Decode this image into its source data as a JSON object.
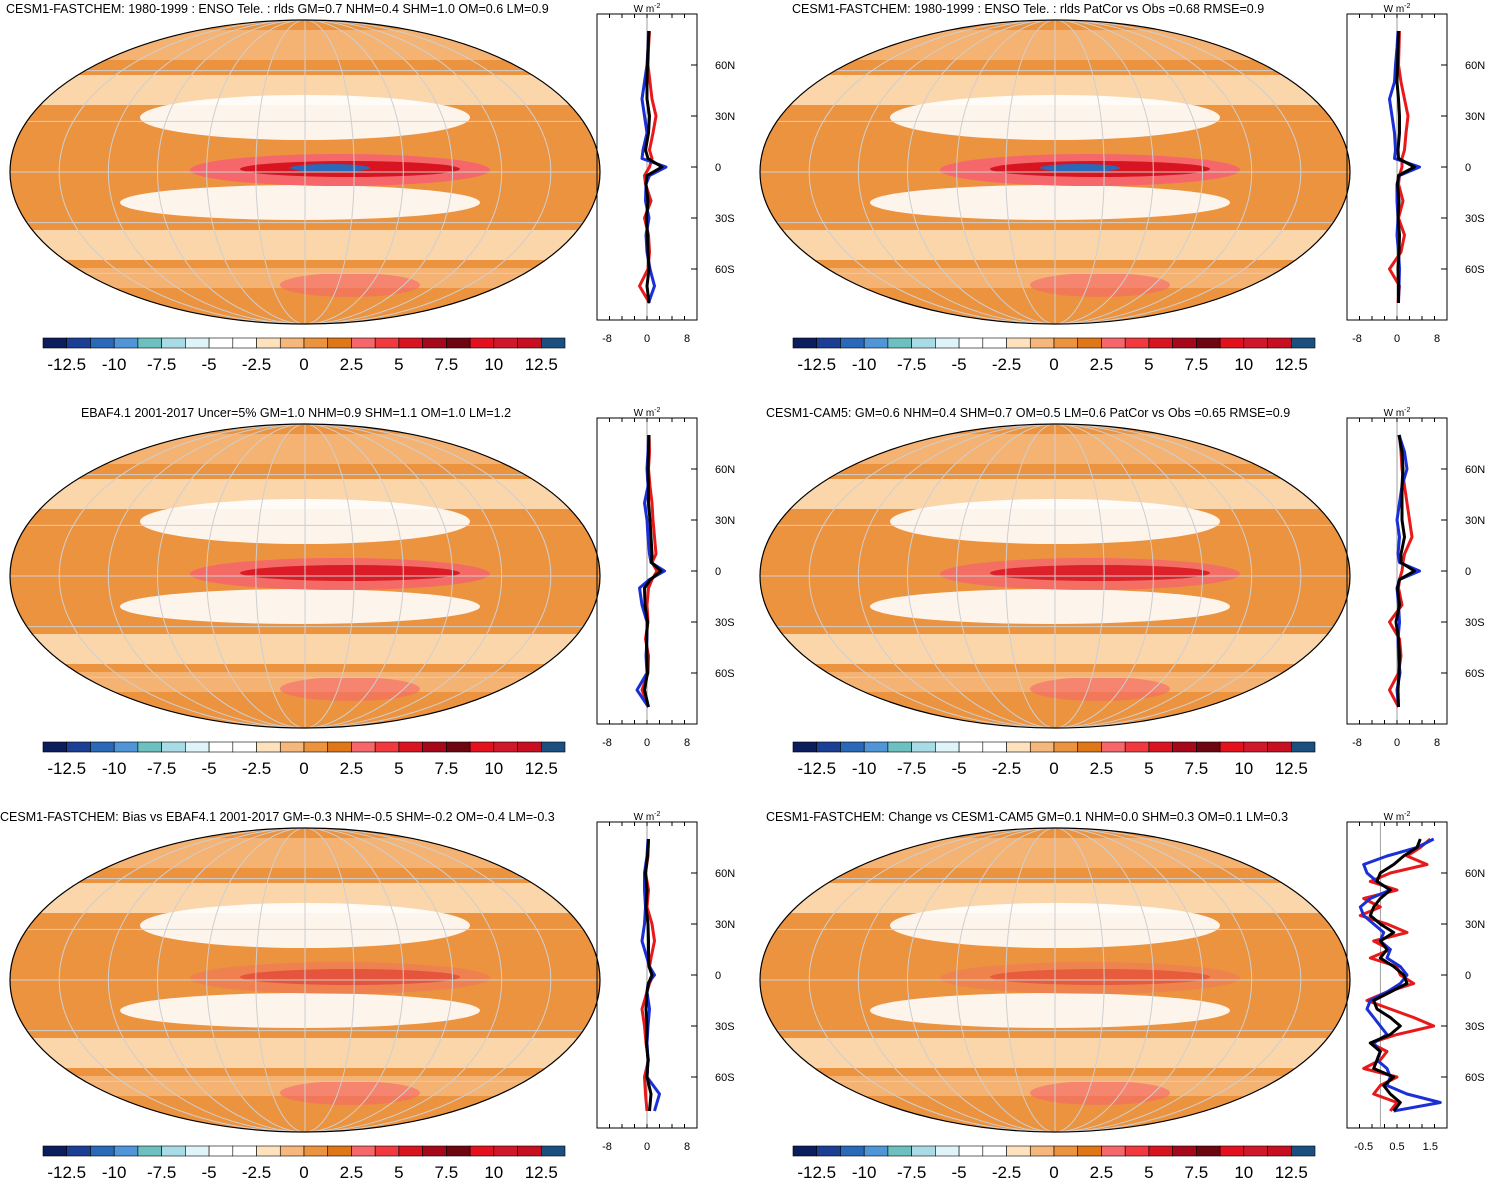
{
  "colorbar": {
    "colors": [
      "#0b1d5c",
      "#1b3f95",
      "#2a68b8",
      "#4f95d8",
      "#6cc0c0",
      "#a8dbe6",
      "#dff4f8",
      "#ffffff",
      "#ffffff",
      "#fde2bd",
      "#f6b77c",
      "#ec9340",
      "#df7618",
      "#f5676a",
      "#f03a40",
      "#d81420",
      "#a5081b",
      "#6e0612",
      "#e3101e",
      "#d0182a",
      "#c61022",
      "#1a4f80"
    ],
    "labels": [
      "-12.5",
      "-10",
      "-7.5",
      "-5",
      "-2.5",
      "0",
      "2.5",
      "5",
      "7.5",
      "10",
      "12.5"
    ]
  },
  "profile_lat_labels": [
    "60N",
    "30N",
    "0",
    "30S",
    "60S"
  ],
  "profile_unit": "W m",
  "profile_unit_sup": "-2",
  "panels": [
    {
      "id": "p1",
      "title": "CESM1-FASTCHEM: 1980-1999 : ENSO Tele. : rlds GM=0.7 NHM=0.4 SHM=1.0 OM=0.6 LM=0.9",
      "x_ticks": [
        "-8",
        "0",
        "8"
      ],
      "profile": {
        "xlim": [
          -10,
          10
        ],
        "lat": [
          80,
          70,
          60,
          50,
          40,
          30,
          20,
          10,
          5,
          0,
          -5,
          -10,
          -20,
          -30,
          -40,
          -50,
          -60,
          -70,
          -80
        ],
        "red": [
          0.5,
          0.3,
          0.2,
          0.6,
          1.0,
          1.8,
          1.2,
          0.5,
          1.0,
          0.5,
          -0.5,
          -0.3,
          0.8,
          -0.5,
          0.3,
          0.5,
          0.2,
          -1.5,
          0.5
        ],
        "blue": [
          0.3,
          0.2,
          0.0,
          -0.5,
          -1.0,
          -0.5,
          0.0,
          -0.8,
          -1.0,
          3.8,
          0.5,
          -0.2,
          -0.3,
          0.4,
          -0.2,
          0.0,
          0.6,
          1.5,
          0.3
        ],
        "black": [
          0.4,
          0.2,
          0.1,
          0.0,
          0.0,
          0.5,
          0.3,
          -0.3,
          0.2,
          3.0,
          0.0,
          -0.2,
          0.2,
          -0.1,
          0.1,
          0.2,
          0.4,
          0.0,
          0.4
        ]
      }
    },
    {
      "id": "p2",
      "title": "CESM1-FASTCHEM: 1980-1999 : ENSO Tele. : rlds PatCor vs Obs =0.68 RMSE=0.9",
      "x_ticks": [
        "-8",
        "0",
        "8"
      ],
      "profile": {
        "xlim": [
          -10,
          10
        ],
        "lat": [
          80,
          70,
          60,
          50,
          40,
          30,
          20,
          10,
          5,
          0,
          -5,
          -10,
          -20,
          -30,
          -40,
          -50,
          -60,
          -70,
          -80
        ],
        "red": [
          0.5,
          0.4,
          0.3,
          0.8,
          1.5,
          2.2,
          1.8,
          1.5,
          1.0,
          1.0,
          0.5,
          0.3,
          1.2,
          0.3,
          1.5,
          0.8,
          -1.5,
          0.5,
          0.2
        ],
        "blue": [
          0.2,
          0.0,
          -0.3,
          -0.5,
          -1.5,
          -1.0,
          -0.5,
          -0.3,
          -0.5,
          4.5,
          0.5,
          0.0,
          0.0,
          0.2,
          0.0,
          0.3,
          0.5,
          0.4,
          0.3
        ],
        "black": [
          0.3,
          0.2,
          0.1,
          0.0,
          0.3,
          0.5,
          0.5,
          0.2,
          0.3,
          3.5,
          0.3,
          0.1,
          0.4,
          0.2,
          0.5,
          0.4,
          0.2,
          0.3,
          0.3
        ]
      }
    },
    {
      "id": "p3",
      "title": "EBAF4.1 2001-2017 Uncer=5% GM=1.0 NHM=0.9 SHM=1.1 OM=1.0 LM=1.2",
      "x_ticks": [
        "-8",
        "0",
        "8"
      ],
      "profile": {
        "xlim": [
          -10,
          10
        ],
        "lat": [
          80,
          70,
          60,
          50,
          40,
          30,
          20,
          10,
          5,
          0,
          -5,
          -10,
          -20,
          -30,
          -40,
          -50,
          -60,
          -70,
          -80
        ],
        "red": [
          0.4,
          0.5,
          0.3,
          0.6,
          1.0,
          1.2,
          1.5,
          1.8,
          1.0,
          2.0,
          1.0,
          0.3,
          0.0,
          0.2,
          -0.3,
          0.3,
          0.2,
          -1.0,
          0.3
        ],
        "blue": [
          0.3,
          0.2,
          0.0,
          0.2,
          -0.5,
          0.0,
          0.2,
          0.5,
          0.8,
          3.5,
          0.5,
          -1.5,
          -1.0,
          0.0,
          0.0,
          -0.2,
          0.0,
          -2.0,
          0.3
        ],
        "black": [
          0.4,
          0.3,
          0.2,
          0.3,
          0.3,
          0.6,
          0.8,
          1.0,
          0.9,
          2.8,
          0.7,
          -0.5,
          -0.4,
          0.1,
          -0.1,
          0.0,
          0.1,
          -0.5,
          0.3
        ]
      }
    },
    {
      "id": "p4",
      "title": "CESM1-CAM5: GM=0.6 NHM=0.4 SHM=0.7 OM=0.5 LM=0.6 PatCor vs Obs =0.65 RMSE=0.9",
      "x_ticks": [
        "-8",
        "0",
        "8"
      ],
      "profile": {
        "xlim": [
          -10,
          10
        ],
        "lat": [
          80,
          70,
          60,
          50,
          40,
          30,
          20,
          10,
          5,
          0,
          -5,
          -10,
          -20,
          -30,
          -40,
          -50,
          -60,
          -70,
          -80
        ],
        "red": [
          0.5,
          0.8,
          1.0,
          1.5,
          2.0,
          2.5,
          3.0,
          1.5,
          1.2,
          1.0,
          0.5,
          0.3,
          1.0,
          -1.5,
          0.5,
          0.8,
          0.3,
          -1.5,
          0.3
        ],
        "blue": [
          0.4,
          1.5,
          2.0,
          1.0,
          0.5,
          0.0,
          0.5,
          0.2,
          0.5,
          4.5,
          0.5,
          0.0,
          0.3,
          0.5,
          0.2,
          0.3,
          0.6,
          0.0,
          0.3
        ],
        "black": [
          0.4,
          1.0,
          1.2,
          1.0,
          1.0,
          1.0,
          1.5,
          0.8,
          0.8,
          3.5,
          0.5,
          0.1,
          0.5,
          -0.2,
          0.3,
          0.5,
          0.4,
          0.2,
          0.3
        ]
      }
    },
    {
      "id": "p5",
      "title": "CESM1-FASTCHEM: Bias vs EBAF4.1 2001-2017 GM=-0.3 NHM=-0.5 SHM=-0.2 OM=-0.4 LM=-0.3",
      "x_ticks": [
        "-8",
        "0",
        "8"
      ],
      "profile": {
        "xlim": [
          -10,
          10
        ],
        "lat": [
          80,
          70,
          60,
          50,
          40,
          30,
          20,
          10,
          5,
          0,
          -5,
          -10,
          -20,
          -30,
          -40,
          -50,
          -60,
          -70,
          -80
        ],
        "red": [
          0.3,
          0.2,
          -0.3,
          0.3,
          0.0,
          1.0,
          1.5,
          0.8,
          0.5,
          1.2,
          0.5,
          0.0,
          -1.0,
          -0.5,
          -0.2,
          0.3,
          -0.5,
          -0.3,
          0.0
        ],
        "blue": [
          0.2,
          0.0,
          -0.5,
          -0.5,
          -0.3,
          -0.5,
          -1.0,
          0.0,
          0.5,
          1.5,
          0.2,
          0.0,
          0.5,
          0.2,
          0.0,
          0.2,
          0.0,
          2.5,
          1.5
        ],
        "black": [
          0.3,
          0.1,
          -0.3,
          0.0,
          -0.2,
          0.2,
          0.3,
          0.3,
          0.4,
          1.0,
          0.3,
          0.0,
          -0.2,
          0.0,
          -0.1,
          0.2,
          0.0,
          0.8,
          0.5
        ]
      }
    },
    {
      "id": "p6",
      "title": "CESM1-FASTCHEM: Change vs CESM1-CAM5 GM=0.1 NHM=0.0 SHM=0.3 OM=0.1 LM=0.3",
      "x_ticks": [
        "-0.5",
        "0.5",
        "1.5"
      ],
      "profile": {
        "xlim": [
          -1.0,
          2.0
        ],
        "lat": [
          80,
          75,
          70,
          65,
          60,
          55,
          50,
          45,
          40,
          35,
          30,
          25,
          20,
          15,
          10,
          5,
          0,
          -5,
          -10,
          -15,
          -20,
          -25,
          -30,
          -35,
          -40,
          -45,
          -50,
          -55,
          -60,
          -65,
          -70,
          -75,
          -80
        ],
        "red": [
          1.5,
          1.2,
          0.8,
          1.4,
          0.3,
          -0.3,
          0.5,
          -0.5,
          0.0,
          -0.6,
          0.2,
          0.8,
          -0.2,
          0.3,
          -0.3,
          0.5,
          0.6,
          1.0,
          0.2,
          -0.4,
          0.3,
          1.0,
          1.6,
          0.5,
          -0.3,
          0.2,
          0.0,
          -0.5,
          0.5,
          0.0,
          -0.2,
          0.5,
          0.3
        ],
        "blue": [
          1.6,
          1.1,
          0.2,
          -0.5,
          -0.4,
          -0.1,
          0.3,
          -0.3,
          -0.6,
          -0.5,
          -0.2,
          0.1,
          0.0,
          0.3,
          0.2,
          0.6,
          0.8,
          0.6,
          0.2,
          -0.3,
          -0.4,
          -0.2,
          0.0,
          0.2,
          -0.2,
          0.0,
          -0.1,
          0.2,
          0.3,
          0.2,
          0.8,
          1.8,
          0.4
        ],
        "black": [
          1.2,
          1.1,
          0.7,
          0.4,
          0.0,
          -0.1,
          0.3,
          0.0,
          -0.2,
          -0.3,
          0.0,
          0.4,
          0.0,
          0.2,
          0.0,
          0.4,
          0.7,
          0.8,
          0.3,
          -0.2,
          -0.1,
          0.3,
          0.6,
          0.3,
          -0.3,
          0.0,
          -0.1,
          -0.2,
          0.4,
          0.1,
          0.3,
          0.6,
          0.4
        ]
      }
    }
  ]
}
